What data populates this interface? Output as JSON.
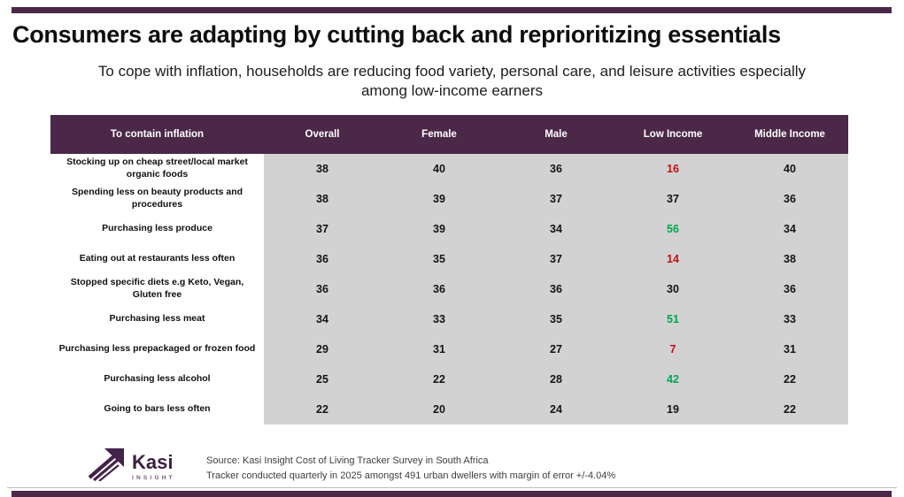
{
  "slide": {
    "title": "Consumers are adapting by cutting back and reprioritizing essentials",
    "subtitle": "To cope with inflation, households are reducing food variety, personal care, and leisure activities especially among low-income earners"
  },
  "chart_data": {
    "type": "table",
    "columns": [
      "To contain inflation",
      "Overall",
      "Female",
      "Male",
      "Low Income",
      "Middle Income"
    ],
    "rows": [
      {
        "label": "Stocking up on cheap street/local market organic foods",
        "values": [
          38,
          40,
          36,
          16,
          40
        ],
        "flags": [
          "",
          "",
          "",
          "red",
          ""
        ]
      },
      {
        "label": "Spending less on beauty products and procedures",
        "values": [
          38,
          39,
          37,
          37,
          36
        ],
        "flags": [
          "",
          "",
          "",
          "",
          ""
        ]
      },
      {
        "label": "Purchasing less produce",
        "values": [
          37,
          39,
          34,
          56,
          34
        ],
        "flags": [
          "",
          "",
          "",
          "green",
          ""
        ]
      },
      {
        "label": "Eating out at restaurants less often",
        "values": [
          36,
          35,
          37,
          14,
          38
        ],
        "flags": [
          "",
          "",
          "",
          "red",
          ""
        ]
      },
      {
        "label": "Stopped specific diets e.g Keto, Vegan, Gluten free",
        "values": [
          36,
          36,
          36,
          30,
          36
        ],
        "flags": [
          "",
          "",
          "",
          "",
          ""
        ]
      },
      {
        "label": "Purchasing less meat",
        "values": [
          34,
          33,
          35,
          51,
          33
        ],
        "flags": [
          "",
          "",
          "",
          "green",
          ""
        ]
      },
      {
        "label": "Purchasing less prepackaged or frozen food",
        "values": [
          29,
          31,
          27,
          7,
          31
        ],
        "flags": [
          "",
          "",
          "",
          "red",
          ""
        ]
      },
      {
        "label": "Purchasing less alcohol",
        "values": [
          25,
          22,
          28,
          42,
          22
        ],
        "flags": [
          "",
          "",
          "",
          "green",
          ""
        ]
      },
      {
        "label": "Going to bars less often",
        "values": [
          22,
          20,
          24,
          19,
          22
        ],
        "flags": [
          "",
          "",
          "",
          "",
          ""
        ]
      }
    ]
  },
  "footer": {
    "logo_name": "Kasi",
    "logo_tagline": "INSIGHT",
    "source_line1": "Source: Kasi Insight Cost of Living Tracker Survey in South Africa",
    "source_line2": "Tracker conducted quarterly in 2025 amongst 491 urban dwellers with margin of error +/-4.04%"
  },
  "colors": {
    "accent_purple": "#4b2847",
    "table_body_gray": "#d2d2d2",
    "negative_red": "#bf1111",
    "positive_green": "#00a550",
    "logo_purple": "#44234a"
  }
}
